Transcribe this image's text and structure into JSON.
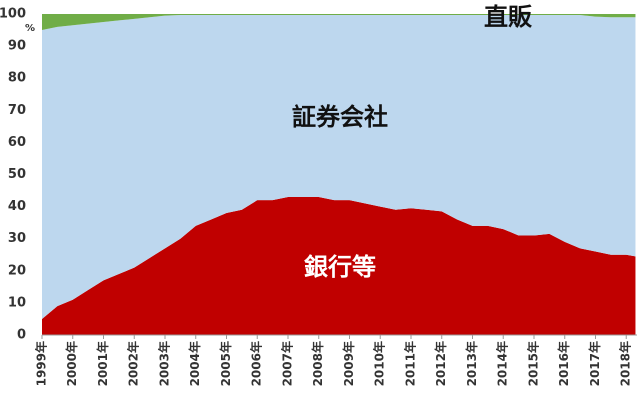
{
  "chart_data": {
    "type": "area",
    "stacked": true,
    "y_label": "%",
    "x": [
      1999,
      1999.5,
      2000,
      2000.5,
      2001,
      2001.5,
      2002,
      2002.5,
      2003,
      2003.5,
      2004,
      2004.5,
      2005,
      2005.5,
      2006,
      2006.5,
      2007,
      2007.5,
      2008,
      2008.5,
      2009,
      2009.5,
      2010,
      2010.5,
      2011,
      2011.5,
      2012,
      2012.5,
      2013,
      2013.5,
      2014,
      2014.5,
      2015,
      2015.5,
      2016,
      2016.5,
      2017,
      2017.5,
      2018,
      2018.3
    ],
    "series": [
      {
        "name": "銀行等",
        "color": "#c00000",
        "label_color": "#ffffff",
        "values": [
          5,
          9,
          11,
          14,
          17,
          19,
          21,
          24,
          27,
          30,
          34,
          36,
          38,
          39,
          42,
          42,
          43,
          43,
          43,
          42,
          42,
          41,
          40,
          39,
          39.5,
          39,
          38.5,
          36,
          34,
          34,
          33,
          31,
          31,
          31.5,
          29,
          27,
          26,
          25,
          25,
          24.5
        ]
      },
      {
        "name": "証券会社",
        "color": "#bdd7ee",
        "label_color": "#111111",
        "values": [
          90,
          87,
          85.5,
          83,
          80.5,
          79,
          77.5,
          75,
          72.5,
          69.7,
          65.7,
          63.7,
          61.7,
          60.7,
          57.7,
          57.7,
          56.7,
          56.7,
          56.7,
          57.7,
          57.7,
          58.7,
          59.7,
          60.7,
          60.2,
          60.7,
          61.2,
          63.7,
          65.7,
          65.7,
          66.7,
          68.7,
          68.7,
          68.2,
          70.7,
          72.7,
          73.2,
          74,
          74,
          74.5
        ]
      },
      {
        "name": "直販",
        "color": "#70ad47",
        "label_color": "#111111",
        "values": [
          5,
          4,
          3.5,
          3,
          2.5,
          2,
          1.5,
          1,
          0.5,
          0.3,
          0.3,
          0.3,
          0.3,
          0.3,
          0.3,
          0.3,
          0.3,
          0.3,
          0.3,
          0.3,
          0.3,
          0.3,
          0.3,
          0.3,
          0.3,
          0.3,
          0.3,
          0.3,
          0.3,
          0.3,
          0.3,
          0.3,
          0.3,
          0.3,
          0.3,
          0.3,
          0.8,
          1,
          1,
          1
        ]
      }
    ],
    "xlim": [
      1999,
      2018.35
    ],
    "xticks": [
      {
        "value": 1999,
        "label": "1999年"
      },
      {
        "value": 2000,
        "label": "2000年"
      },
      {
        "value": 2001,
        "label": "2001年"
      },
      {
        "value": 2002,
        "label": "2002年"
      },
      {
        "value": 2003,
        "label": "2003年"
      },
      {
        "value": 2004,
        "label": "2004年"
      },
      {
        "value": 2005,
        "label": "2005年"
      },
      {
        "value": 2006,
        "label": "2006年"
      },
      {
        "value": 2007,
        "label": "2007年"
      },
      {
        "value": 2008,
        "label": "2008年"
      },
      {
        "value": 2009,
        "label": "2009年"
      },
      {
        "value": 2010,
        "label": "2010年"
      },
      {
        "value": 2011,
        "label": "2011年"
      },
      {
        "value": 2012,
        "label": "2012年"
      },
      {
        "value": 2013,
        "label": "2013年"
      },
      {
        "value": 2014,
        "label": "2014年"
      },
      {
        "value": 2015,
        "label": "2015年"
      },
      {
        "value": 2016,
        "label": "2016年"
      },
      {
        "value": 2017,
        "label": "2017年"
      },
      {
        "value": 2018,
        "label": "2018年"
      }
    ],
    "ylim": [
      0,
      100
    ],
    "yticks": [
      0,
      10,
      20,
      30,
      40,
      50,
      60,
      70,
      80,
      90,
      100
    ],
    "grid": false
  }
}
